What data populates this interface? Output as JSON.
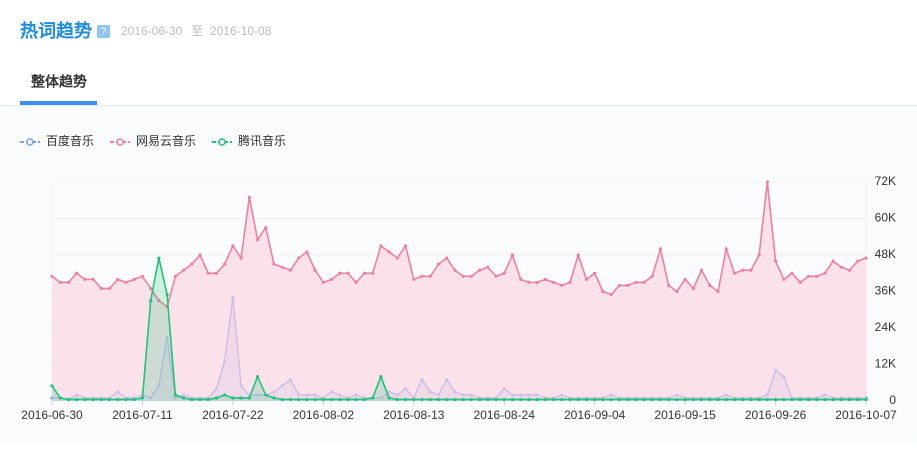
{
  "header": {
    "title": "热词趋势",
    "help": "?",
    "start": "2016-06-30",
    "sep": "至",
    "end": "2016-10-08"
  },
  "tabs": [
    "整体趋势"
  ],
  "chart_data": {
    "type": "line",
    "legend": "top-left",
    "grid": true,
    "categories": [
      "2016-06-30",
      null,
      null,
      null,
      null,
      null,
      null,
      null,
      null,
      null,
      null,
      "2016-07-11",
      null,
      null,
      null,
      null,
      null,
      null,
      null,
      null,
      null,
      null,
      "2016-07-22",
      null,
      null,
      null,
      null,
      null,
      null,
      null,
      null,
      null,
      null,
      "2016-08-02",
      null,
      null,
      null,
      null,
      null,
      null,
      null,
      null,
      null,
      null,
      "2016-08-13",
      null,
      null,
      null,
      null,
      null,
      null,
      null,
      null,
      null,
      null,
      "2016-08-24",
      null,
      null,
      null,
      null,
      null,
      null,
      null,
      null,
      null,
      null,
      "2016-09-04",
      null,
      null,
      null,
      null,
      null,
      null,
      null,
      null,
      null,
      null,
      "2016-09-15",
      null,
      null,
      null,
      null,
      null,
      null,
      null,
      null,
      null,
      null,
      "2016-09-26",
      null,
      null,
      null,
      null,
      null,
      null,
      null,
      null,
      null,
      null,
      "2016-10-07"
    ],
    "ylim": [
      0,
      72
    ],
    "yticks": [
      0,
      {
        "value": 12,
        "label": "12K"
      },
      {
        "value": 24,
        "label": "24K"
      },
      {
        "value": 36,
        "label": "36K"
      },
      {
        "value": 48,
        "label": "48K"
      },
      {
        "value": 60,
        "label": "60K"
      },
      {
        "value": 72,
        "label": "72K"
      }
    ],
    "series": [
      {
        "name": "百度音乐",
        "color": "#7b9ff0",
        "fill": "rgba(123,159,240,0.25)",
        "values": [
          1,
          1,
          0.5,
          2,
          1,
          1,
          1,
          1,
          3,
          1,
          1,
          2,
          1,
          5,
          21,
          1,
          2,
          1,
          1,
          1,
          4,
          13,
          34,
          5,
          2,
          2,
          2,
          3,
          5,
          7,
          2,
          2,
          2,
          1,
          3,
          2,
          1,
          2,
          1,
          1,
          1,
          3,
          2,
          4,
          1,
          7,
          3,
          2,
          7,
          3,
          2,
          2,
          1,
          1,
          1,
          4,
          2,
          2,
          2,
          2,
          1,
          1,
          2,
          1,
          1,
          1,
          1,
          1,
          2,
          1,
          1,
          1,
          1,
          1,
          1,
          1,
          2,
          1,
          1,
          1,
          1,
          1,
          2,
          1,
          1,
          1,
          1,
          2,
          10,
          8,
          1,
          1,
          1,
          1,
          2,
          1,
          1,
          1,
          1,
          1
        ]
      },
      {
        "name": "网易云音乐",
        "color": "#ef7fa0",
        "fill": "rgba(252,212,224,0.65)",
        "values": [
          41,
          39,
          39,
          42,
          40,
          40,
          37,
          37,
          40,
          39,
          40,
          41,
          37,
          33,
          31,
          41,
          43,
          45,
          48,
          42,
          42,
          45,
          51,
          47,
          67,
          53,
          57,
          45,
          44,
          43,
          47,
          49,
          43,
          39,
          40,
          42,
          42,
          39,
          42,
          42,
          51,
          49,
          47,
          51,
          40,
          41,
          41,
          45,
          47,
          43,
          41,
          41,
          43,
          44,
          41,
          42,
          48,
          40,
          39,
          39,
          40,
          39,
          38,
          39,
          48,
          40,
          42,
          36,
          35,
          38,
          38,
          39,
          39,
          41,
          50,
          38,
          36,
          40,
          37,
          43,
          38,
          36,
          50,
          42,
          43,
          43,
          48,
          72,
          46,
          40,
          42,
          39,
          41,
          41,
          42,
          46,
          44,
          43,
          46,
          47
        ]
      },
      {
        "name": "腾讯音乐",
        "color": "#1ec47c",
        "fill": "rgba(30,196,124,0.2)",
        "values": [
          5,
          1,
          0.5,
          0.5,
          0.5,
          0.5,
          0.5,
          0.5,
          0.5,
          0.5,
          0.5,
          1,
          33,
          47,
          35,
          2,
          1,
          0.5,
          0.5,
          0.5,
          1,
          2,
          1,
          1,
          1,
          8,
          2,
          1,
          0.5,
          0.5,
          0.5,
          0.5,
          0.5,
          0.5,
          0.5,
          0.5,
          0.5,
          0.5,
          0.5,
          1,
          8,
          1,
          0.5,
          0.5,
          0.5,
          0.5,
          0.5,
          0.5,
          0.5,
          0.5,
          0.5,
          0.5,
          0.5,
          0.5,
          0.5,
          0.5,
          0.5,
          0.5,
          0.5,
          0.5,
          0.5,
          0.5,
          0.5,
          0.5,
          0.5,
          0.5,
          0.5,
          0.5,
          0.5,
          0.5,
          0.5,
          0.5,
          0.5,
          0.5,
          0.5,
          0.5,
          0.5,
          0.5,
          0.5,
          0.5,
          0.5,
          0.5,
          0.5,
          0.5,
          0.5,
          0.5,
          0.5,
          0.5,
          0.5,
          0.5,
          0.5,
          0.5,
          0.5,
          0.5,
          0.5,
          0.5,
          0.5,
          0.5,
          0.5,
          0.5
        ]
      }
    ]
  }
}
